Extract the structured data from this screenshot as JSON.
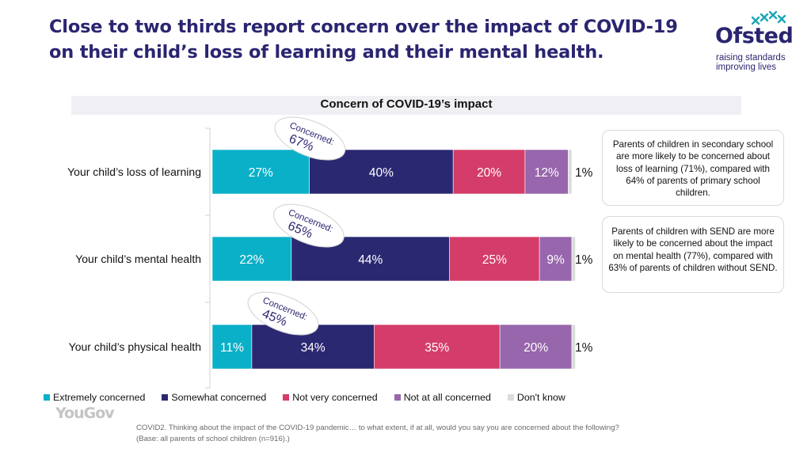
{
  "header": {
    "title_line1": "Close to two thirds report concern over the impact of COVID-19",
    "title_line2": "on their child’s loss of learning and their mental health."
  },
  "logo": {
    "name": "Ofsted",
    "tagline_line1": "raising standards",
    "tagline_line2": "improving lives"
  },
  "chart_data": {
    "type": "bar",
    "orientation": "horizontal",
    "stacked": true,
    "title": "Concern of COVID-19’s impact",
    "categories": [
      "Your child’s loss of learning",
      "Your child’s mental health",
      "Your child’s physical health"
    ],
    "series": [
      {
        "name": "Extremely concerned",
        "color": "#0ab0c8",
        "values": [
          27,
          22,
          11
        ]
      },
      {
        "name": "Somewhat concerned",
        "color": "#2b2872",
        "values": [
          40,
          44,
          34
        ]
      },
      {
        "name": "Not very concerned",
        "color": "#d43d6a",
        "values": [
          20,
          25,
          35
        ]
      },
      {
        "name": "Not at all concerned",
        "color": "#9766ac",
        "values": [
          12,
          9,
          20
        ]
      },
      {
        "name": "Don't know",
        "color": "#dcdcdc",
        "values": [
          1,
          1,
          1
        ]
      }
    ],
    "data_labels": [
      [
        "27%",
        "40%",
        "20%",
        "12%",
        "1%"
      ],
      [
        "22%",
        "44%",
        "25%",
        "9%",
        "1%"
      ],
      [
        "11%",
        "34%",
        "35%",
        "20%",
        "1%"
      ]
    ],
    "concerned_callouts": [
      {
        "label": "Concerned:",
        "value": "67%"
      },
      {
        "label": "Concerned:",
        "value": "65%"
      },
      {
        "label": "Concerned:",
        "value": "45%"
      }
    ],
    "xlim": [
      0,
      100
    ],
    "legend_position": "bottom-left"
  },
  "notes": [
    "Parents of children in secondary school are more likely to be concerned about loss of learning (71%), compared with 64% of parents of primary school children.",
    "Parents of children with SEND are more likely to be concerned about the impact on mental health (77%), compared with 63% of parents of children without SEND."
  ],
  "footer": {
    "brand": "YouGov",
    "footnote_line1": "COVID2. Thinking about the impact of the COVID-19 pandemic… to what extent, if at all, would you say you are concerned about the following?",
    "footnote_line2": "(Base: all parents of school children (n=916).)"
  },
  "colors": {
    "title": "#2a2570",
    "extremely": "#0ab0c8",
    "somewhat": "#2b2872",
    "not_very": "#d43d6a",
    "not_at_all": "#9766ac",
    "dont_know": "#dcdcdc"
  }
}
